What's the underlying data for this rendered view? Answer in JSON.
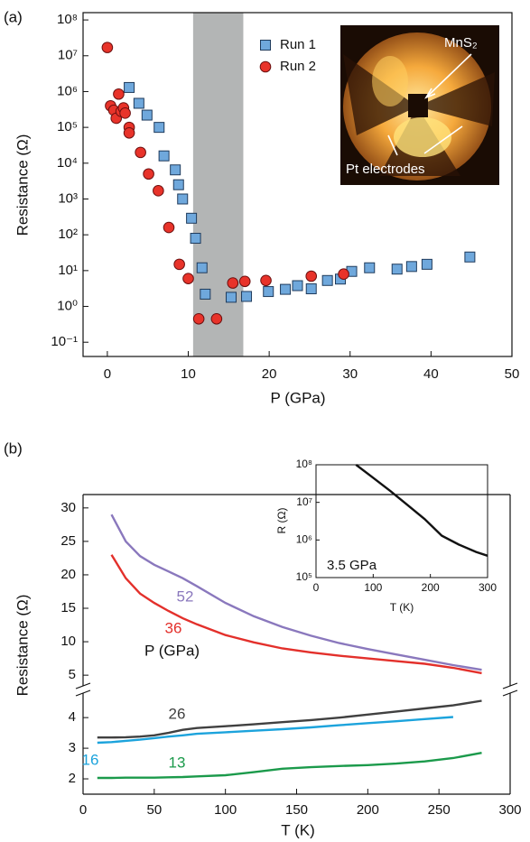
{
  "chart_data": [
    {
      "type": "scatter",
      "panel_label": "(a)",
      "x_label": "P (GPa)",
      "y_label": "Resistance (Ω)",
      "xlim": [
        -3,
        50
      ],
      "xticks": [
        0,
        10,
        20,
        30,
        40,
        50
      ],
      "ylim": [
        0.04,
        160000000
      ],
      "log_y": true,
      "yticks": [
        {
          "value": 0.1,
          "label": "10⁻¹"
        },
        {
          "value": 1,
          "label": "10⁰"
        },
        {
          "value": 10,
          "label": "10¹"
        },
        {
          "value": 100,
          "label": "10²"
        },
        {
          "value": 1000,
          "label": "10³"
        },
        {
          "value": 10000,
          "label": "10⁴"
        },
        {
          "value": 100000,
          "label": "10⁵"
        },
        {
          "value": 1000000,
          "label": "10⁶"
        },
        {
          "value": 10000000,
          "label": "10⁷"
        },
        {
          "value": 100000000,
          "label": "10⁸"
        }
      ],
      "shaded_region": {
        "x": [
          10.6,
          16.8
        ],
        "color": "#b3b5b5"
      },
      "annotations": [
        "MnS₂",
        "Pt electrodes"
      ],
      "series": [
        {
          "name": "Run 1",
          "marker": "square",
          "color": "#6fa8dc",
          "edge_color": "#1f3b5c",
          "x": [
            2.7,
            3.9,
            4.9,
            6.4,
            7.0,
            8.4,
            8.8,
            9.3,
            10.4,
            10.9,
            11.7,
            12.1,
            15.3,
            17.2,
            19.9,
            22.0,
            23.5,
            25.2,
            27.2,
            28.8,
            30.2,
            32.4,
            35.8,
            37.6,
            39.5,
            44.8
          ],
          "values": [
            1300000,
            470000,
            220000,
            100000,
            16000,
            6500,
            2500,
            1000,
            290,
            80,
            12,
            2.2,
            1.8,
            1.9,
            2.6,
            3.0,
            3.8,
            3.1,
            5.3,
            5.8,
            9.5,
            12,
            11,
            13,
            15,
            24
          ]
        },
        {
          "name": "Run 2",
          "marker": "circle",
          "color": "#e8332a",
          "edge_color": "#6b1010",
          "x": [
            0,
            0.4,
            0.8,
            1.1,
            1.4,
            1.7,
            2.0,
            2.2,
            2.7,
            2.7,
            4.1,
            5.1,
            6.3,
            7.6,
            8.9,
            10.0,
            11.3,
            13.5,
            15.5,
            17.0,
            19.6,
            25.2,
            29.2
          ],
          "values": [
            17000000,
            400000,
            300000,
            180000,
            850000,
            280000,
            350000,
            250000,
            100000,
            70000,
            20000,
            5000,
            1700,
            160,
            15,
            6,
            0.45,
            0.45,
            4.5,
            5,
            5.3,
            7,
            8
          ]
        }
      ]
    },
    {
      "type": "line",
      "panel_label": "(b)",
      "x_label": "T (K)",
      "y_label": "Resistance (Ω)",
      "legend_title": "P (GPa)",
      "xlim": [
        0,
        300
      ],
      "xticks": [
        0,
        50,
        100,
        150,
        200,
        250,
        300
      ],
      "ylim": [
        1.5,
        4.8
      ],
      "yticks": [
        2,
        3,
        4
      ],
      "ylim_upper": [
        3.4,
        32
      ],
      "yticks_upper": [
        5,
        10,
        15,
        20,
        25,
        30
      ],
      "x": [
        10,
        20,
        30,
        40,
        50,
        60,
        70,
        80,
        100,
        120,
        140,
        160,
        180,
        200,
        220,
        240,
        260,
        280
      ],
      "series": [
        {
          "name": "52",
          "color": "#8a78bd",
          "axis": "upper",
          "values": [
            null,
            29,
            25,
            22.8,
            21.5,
            20.5,
            19.5,
            18.3,
            15.8,
            13.8,
            12.2,
            10.9,
            9.8,
            8.9,
            8.1,
            7.3,
            6.5,
            5.8
          ]
        },
        {
          "name": "36",
          "color": "#e3302b",
          "axis": "upper",
          "values": [
            null,
            23,
            19.5,
            17.2,
            15.8,
            14.6,
            13.5,
            12.6,
            11.0,
            9.9,
            9.0,
            8.4,
            7.9,
            7.5,
            7.1,
            6.7,
            6.1,
            5.3
          ]
        },
        {
          "name": "26",
          "color": "#404040",
          "axis": "lower",
          "values": [
            3.35,
            3.35,
            3.36,
            3.38,
            3.42,
            3.5,
            3.6,
            3.66,
            3.72,
            3.78,
            3.85,
            3.92,
            4.0,
            4.1,
            4.2,
            4.3,
            4.4,
            4.55
          ]
        },
        {
          "name": "16",
          "color": "#1ca3dc",
          "axis": "lower",
          "values": [
            3.18,
            3.2,
            3.24,
            3.28,
            3.33,
            3.38,
            3.42,
            3.47,
            3.52,
            3.57,
            3.62,
            3.68,
            3.75,
            3.82,
            3.88,
            3.95,
            4.02,
            null
          ]
        },
        {
          "name": "13",
          "color": "#1b9a4b",
          "axis": "lower",
          "values": [
            2.03,
            2.03,
            2.04,
            2.04,
            2.04,
            2.05,
            2.06,
            2.08,
            2.12,
            2.22,
            2.33,
            2.38,
            2.42,
            2.45,
            2.5,
            2.57,
            2.68,
            2.85
          ]
        }
      ]
    },
    {
      "type": "line",
      "x_label": "T (K)",
      "y_label": "R (Ω)",
      "annotation": "3.5 GPa",
      "xlim": [
        0,
        300
      ],
      "xticks": [
        0,
        100,
        200,
        300
      ],
      "ylim": [
        100000,
        100000000
      ],
      "log_y": true,
      "yticks": [
        {
          "value": 100000,
          "label": "10⁵"
        },
        {
          "value": 1000000,
          "label": "10⁶"
        },
        {
          "value": 10000000,
          "label": "10⁷"
        },
        {
          "value": 100000000,
          "label": "10⁸"
        }
      ],
      "x": [
        70,
        100,
        130,
        160,
        190,
        220,
        250,
        280,
        300
      ],
      "series": [
        {
          "color": "#111111",
          "values": [
            100000000,
            45000000,
            20000000,
            8500000,
            3600000,
            1300000,
            750000,
            480000,
            380000
          ]
        }
      ]
    }
  ]
}
